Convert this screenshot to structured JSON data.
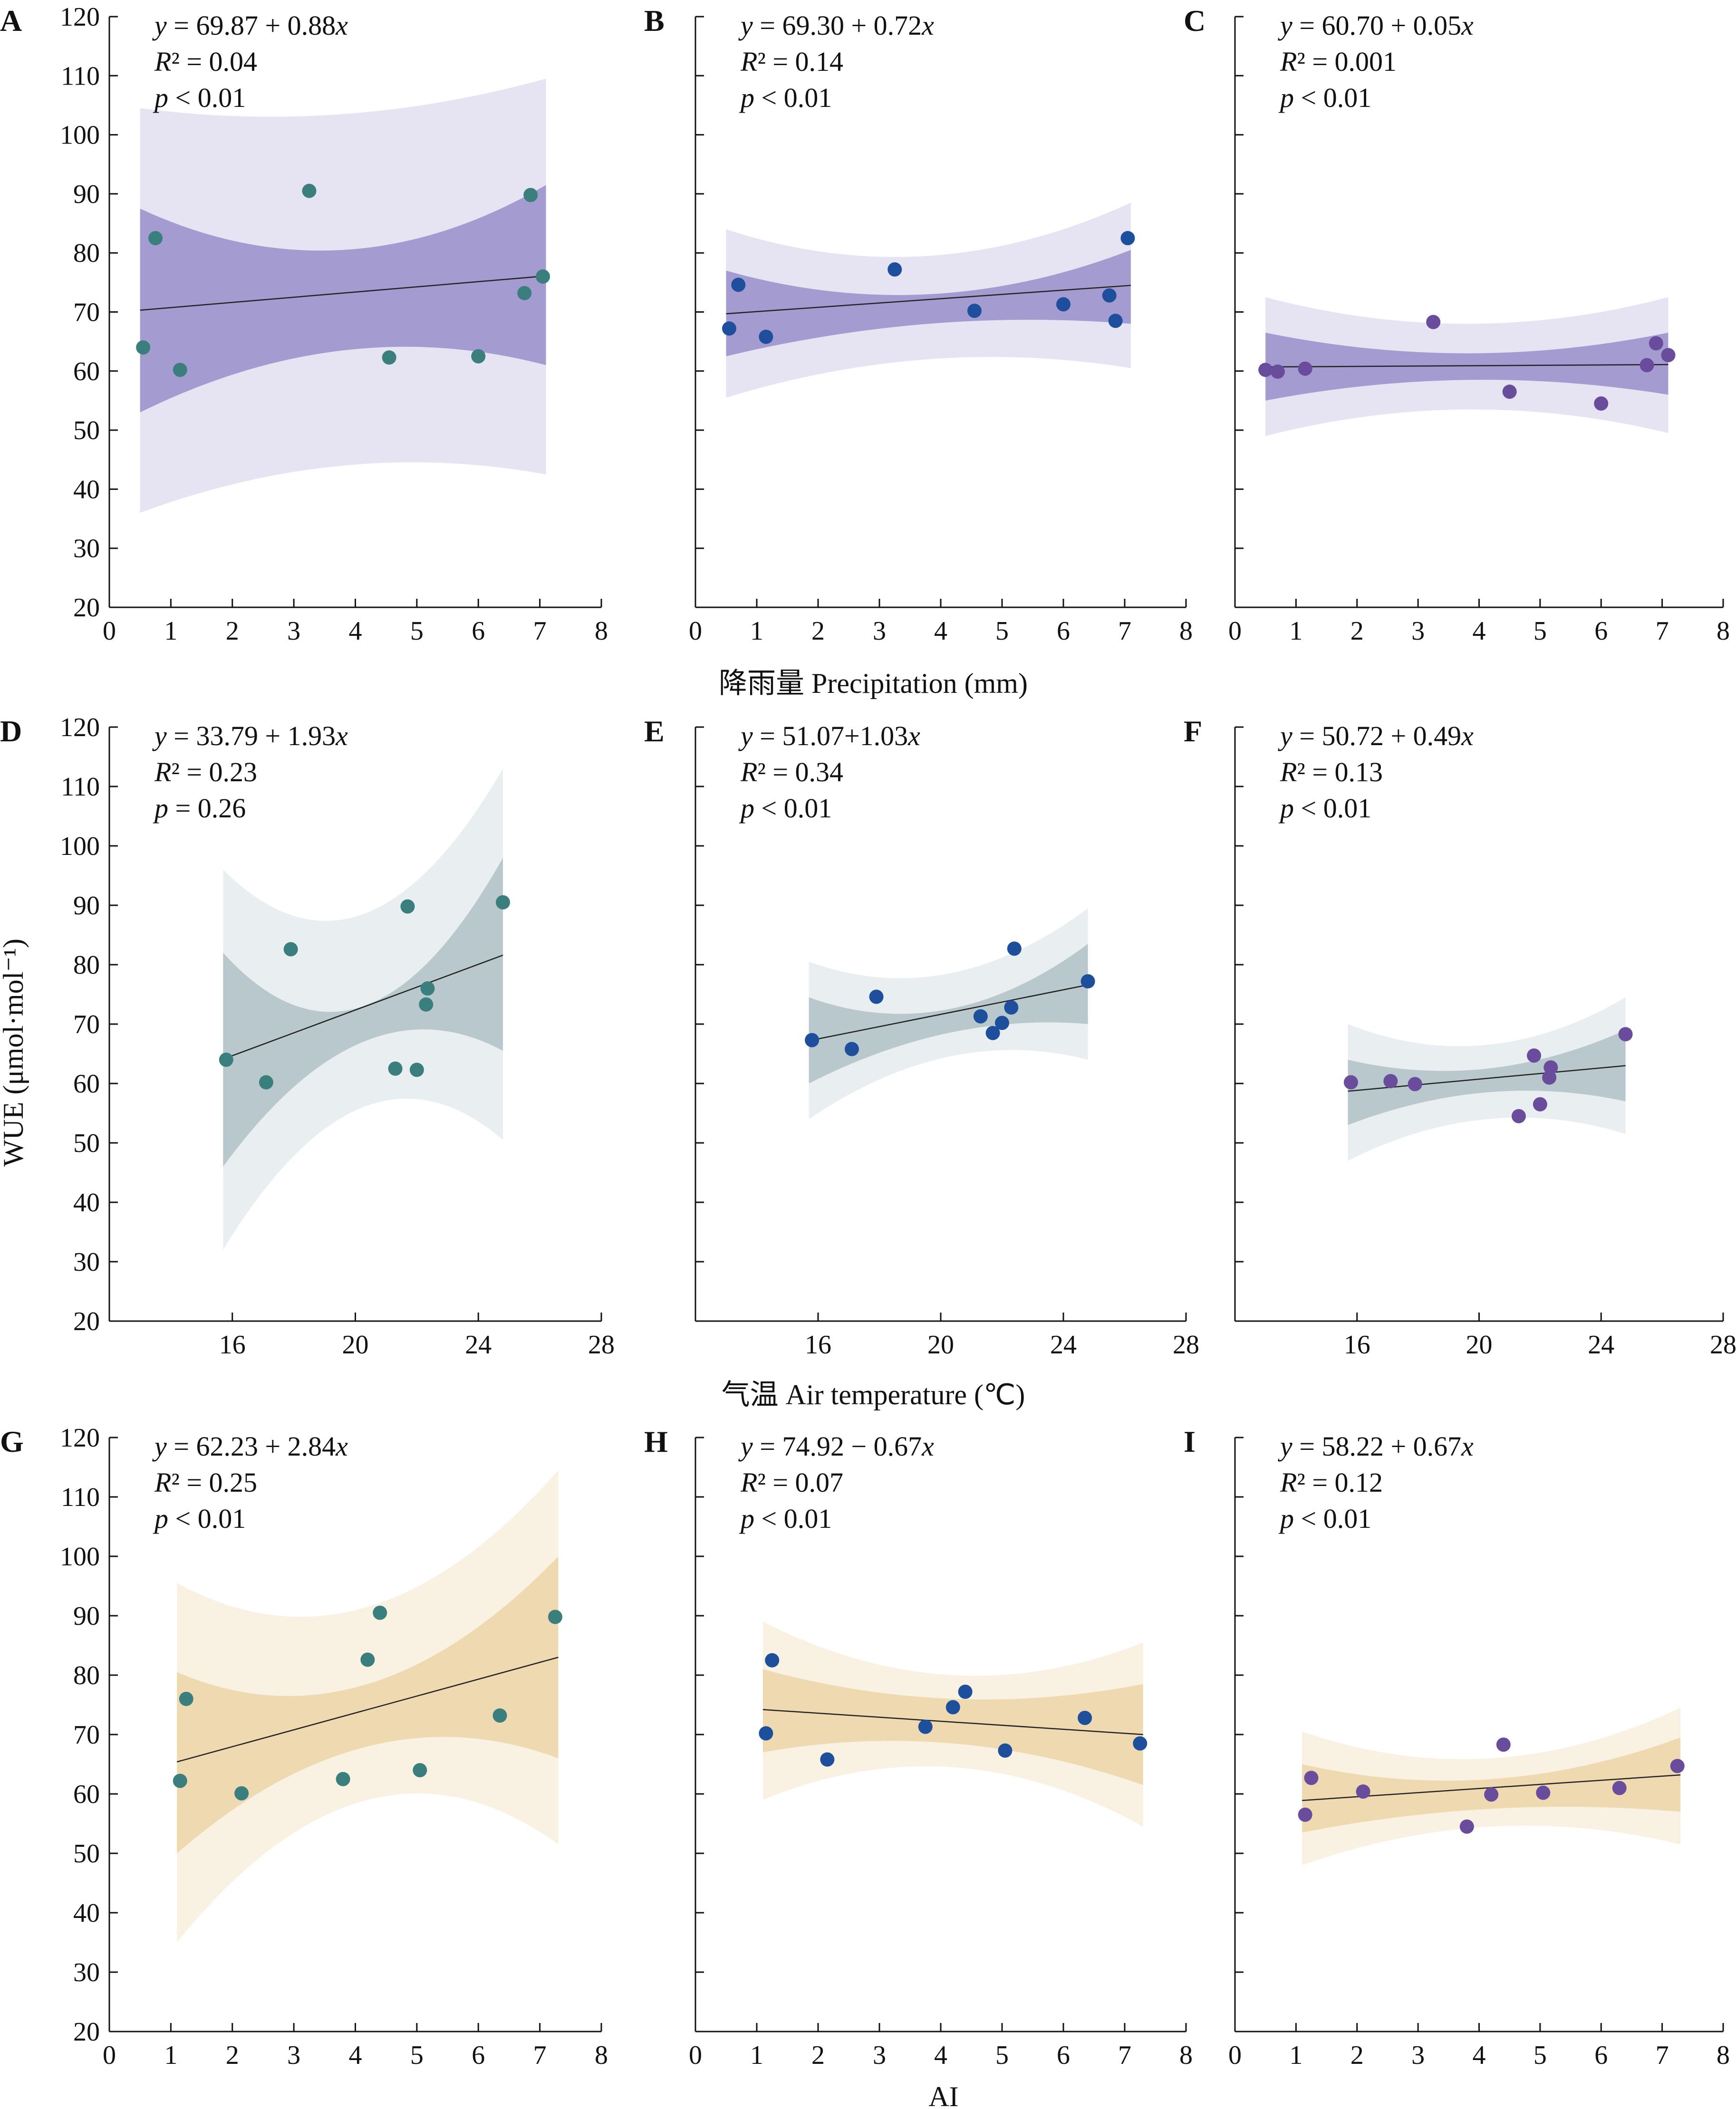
{
  "figure": {
    "ylabel": "WUE (μmol·mol⁻¹)",
    "row_xlabels": [
      "降雨量 Precipitation (mm)",
      "气温 Air temperature (℃)",
      "AI"
    ]
  },
  "colors": {
    "point_col_1": "#3a7f7d",
    "point_col_2": "#1e4f9c",
    "point_col_3": "#6a4c9c",
    "band_row_1_outer": "#e6e3f3",
    "band_row_1_inner": "#a49bd0",
    "band_row_2_outer": "#e9eef0",
    "band_row_2_inner": "#b9c8cc",
    "band_row_3_outer": "#f9f1e2",
    "band_row_3_inner": "#efd9b0",
    "fit_line": "#222222",
    "axis": "#111111"
  },
  "chart_data": [
    {
      "panel": "A",
      "type": "scatter",
      "row": 0,
      "col": 0,
      "equation": "y = 69.87 + 0.88x",
      "r2": "R² = 0.04",
      "p": "p < 0.01",
      "xlim": [
        0,
        8
      ],
      "ylim": [
        20,
        120
      ],
      "xticks": [
        0,
        1,
        2,
        3,
        4,
        5,
        6,
        7,
        8
      ],
      "yticks": [
        20,
        30,
        40,
        50,
        60,
        70,
        80,
        90,
        100,
        110,
        120
      ],
      "points": [
        [
          0.55,
          64
        ],
        [
          0.75,
          82.5
        ],
        [
          1.15,
          60.2
        ],
        [
          3.25,
          90.5
        ],
        [
          4.55,
          62.3
        ],
        [
          6.0,
          62.5
        ],
        [
          6.75,
          73.2
        ],
        [
          6.85,
          89.8
        ],
        [
          7.05,
          76
        ]
      ],
      "fit": [
        [
          0.5,
          70.3
        ],
        [
          7.1,
          76.1
        ]
      ],
      "band_x": [
        0.5,
        7.1
      ],
      "outer_upper": [
        104.5,
        103.5,
        109.5
      ],
      "outer_lower": [
        36.0,
        44.0,
        42.5
      ],
      "inner_upper": [
        87.5,
        80.5,
        91.5
      ],
      "inner_lower": [
        53.0,
        63.5,
        61.0
      ]
    },
    {
      "panel": "B",
      "type": "scatter",
      "row": 0,
      "col": 1,
      "equation": "y = 69.30 + 0.72x",
      "r2": "R² = 0.14",
      "p": "p < 0.01",
      "xlim": [
        0,
        8
      ],
      "ylim": [
        20,
        120
      ],
      "xticks": [
        0,
        1,
        2,
        3,
        4,
        5,
        6,
        7,
        8
      ],
      "yticks": [
        20,
        30,
        40,
        50,
        60,
        70,
        80,
        90,
        100,
        110,
        120
      ],
      "points": [
        [
          0.55,
          67.2
        ],
        [
          0.7,
          74.6
        ],
        [
          1.15,
          65.8
        ],
        [
          3.25,
          77.2
        ],
        [
          4.55,
          70.2
        ],
        [
          6.0,
          71.3
        ],
        [
          6.75,
          72.8
        ],
        [
          6.85,
          68.5
        ],
        [
          7.05,
          82.5
        ]
      ],
      "fit": [
        [
          0.5,
          69.7
        ],
        [
          7.1,
          74.5
        ]
      ],
      "band_x": [
        0.5,
        7.1
      ],
      "outer_upper": [
        84.0,
        79.5,
        88.5
      ],
      "outer_lower": [
        55.5,
        62.0,
        60.5
      ],
      "inner_upper": [
        77.0,
        73.0,
        80.5
      ],
      "inner_lower": [
        62.5,
        68.0,
        68.0
      ]
    },
    {
      "panel": "C",
      "type": "scatter",
      "row": 0,
      "col": 2,
      "equation": "y = 60.70 + 0.05x",
      "r2": "R² = 0.001",
      "p": "p < 0.01",
      "xlim": [
        0,
        8
      ],
      "ylim": [
        20,
        120
      ],
      "xticks": [
        0,
        1,
        2,
        3,
        4,
        5,
        6,
        7,
        8
      ],
      "yticks": [
        20,
        30,
        40,
        50,
        60,
        70,
        80,
        90,
        100,
        110,
        120
      ],
      "points": [
        [
          0.5,
          60.2
        ],
        [
          0.7,
          59.9
        ],
        [
          1.15,
          60.4
        ],
        [
          3.25,
          68.3
        ],
        [
          4.5,
          56.5
        ],
        [
          6.0,
          54.5
        ],
        [
          6.75,
          61.0
        ],
        [
          6.9,
          64.7
        ],
        [
          7.1,
          62.7
        ]
      ],
      "fit": [
        [
          0.5,
          60.7
        ],
        [
          7.1,
          61.1
        ]
      ],
      "band_x": [
        0.5,
        7.1
      ],
      "outer_upper": [
        72.5,
        68.0,
        72.5
      ],
      "outer_lower": [
        49.0,
        53.5,
        49.5
      ],
      "inner_upper": [
        66.5,
        63.0,
        66.5
      ],
      "inner_lower": [
        55.0,
        58.5,
        56.0
      ]
    },
    {
      "panel": "D",
      "type": "scatter",
      "row": 1,
      "col": 0,
      "equation": "y = 33.79 + 1.93x",
      "r2": "R² = 0.23",
      "p": "p = 0.26",
      "xlim": [
        12,
        28
      ],
      "ylim": [
        20,
        120
      ],
      "xticks": [
        16,
        20,
        24,
        28
      ],
      "yticks": [
        20,
        30,
        40,
        50,
        60,
        70,
        80,
        90,
        100,
        110,
        120
      ],
      "points": [
        [
          15.8,
          64
        ],
        [
          17.1,
          60.2
        ],
        [
          17.9,
          82.6
        ],
        [
          21.3,
          62.5
        ],
        [
          21.7,
          89.8
        ],
        [
          22.0,
          62.3
        ],
        [
          22.3,
          73.3
        ],
        [
          22.35,
          76
        ],
        [
          24.8,
          90.5
        ]
      ],
      "fit": [
        [
          15.7,
          64.1
        ],
        [
          24.8,
          81.6
        ]
      ],
      "band_x": [
        15.7,
        24.8
      ],
      "outer_upper": [
        96.0,
        88.5,
        113.0
      ],
      "outer_lower": [
        32.0,
        56.0,
        50.5
      ],
      "inner_upper": [
        82.0,
        73.0,
        98.0
      ],
      "inner_lower": [
        46.0,
        67.0,
        65.5
      ]
    },
    {
      "panel": "E",
      "type": "scatter",
      "row": 1,
      "col": 1,
      "equation": "y = 51.07+1.03x",
      "r2": "R² = 0.34",
      "p": "p < 0.01",
      "xlim": [
        12,
        28
      ],
      "ylim": [
        20,
        120
      ],
      "xticks": [
        16,
        20,
        24,
        28
      ],
      "yticks": [
        20,
        30,
        40,
        50,
        60,
        70,
        80,
        90,
        100,
        110,
        120
      ],
      "points": [
        [
          15.8,
          67.3
        ],
        [
          17.1,
          65.8
        ],
        [
          17.9,
          74.6
        ],
        [
          21.3,
          71.3
        ],
        [
          21.7,
          68.5
        ],
        [
          22.0,
          70.2
        ],
        [
          22.3,
          72.8
        ],
        [
          22.4,
          82.7
        ],
        [
          24.8,
          77.2
        ]
      ],
      "fit": [
        [
          15.7,
          67.2
        ],
        [
          24.8,
          76.6
        ]
      ],
      "band_x": [
        15.7,
        24.8
      ],
      "outer_upper": [
        80.5,
        78.5,
        89.5
      ],
      "outer_lower": [
        54.0,
        64.5,
        64.0
      ],
      "inner_upper": [
        74.5,
        72.5,
        83.5
      ],
      "inner_lower": [
        60.0,
        68.5,
        70.0
      ]
    },
    {
      "panel": "F",
      "type": "scatter",
      "row": 1,
      "col": 2,
      "equation": "y = 50.72 + 0.49x",
      "r2": "R² = 0.13",
      "p": "p < 0.01",
      "xlim": [
        12,
        28
      ],
      "ylim": [
        20,
        120
      ],
      "xticks": [
        16,
        20,
        24,
        28
      ],
      "yticks": [
        20,
        30,
        40,
        50,
        60,
        70,
        80,
        90,
        100,
        110,
        120
      ],
      "points": [
        [
          15.8,
          60.2
        ],
        [
          17.1,
          60.4
        ],
        [
          17.9,
          59.9
        ],
        [
          21.3,
          54.5
        ],
        [
          21.8,
          64.7
        ],
        [
          22.0,
          56.5
        ],
        [
          22.3,
          61.0
        ],
        [
          22.35,
          62.7
        ],
        [
          24.8,
          68.3
        ]
      ],
      "fit": [
        [
          15.7,
          58.7
        ],
        [
          24.8,
          63.0
        ]
      ],
      "band_x": [
        15.7,
        24.8
      ],
      "outer_upper": [
        70.0,
        66.5,
        74.5
      ],
      "outer_lower": [
        47.0,
        54.0,
        51.5
      ],
      "inner_upper": [
        64.0,
        62.5,
        69.0
      ],
      "inner_lower": [
        53.0,
        58.5,
        57.0
      ]
    },
    {
      "panel": "G",
      "type": "scatter",
      "row": 2,
      "col": 0,
      "equation": "y = 62.23 + 2.84x",
      "r2": "R² = 0.25",
      "p": "p < 0.01",
      "xlim": [
        0,
        8
      ],
      "ylim": [
        20,
        120
      ],
      "xticks": [
        0,
        1,
        2,
        3,
        4,
        5,
        6,
        7,
        8
      ],
      "yticks": [
        20,
        30,
        40,
        50,
        60,
        70,
        80,
        90,
        100,
        110,
        120
      ],
      "points": [
        [
          1.15,
          62.2
        ],
        [
          1.25,
          76
        ],
        [
          2.15,
          60.1
        ],
        [
          3.8,
          62.5
        ],
        [
          4.2,
          82.6
        ],
        [
          4.4,
          90.5
        ],
        [
          5.05,
          64
        ],
        [
          6.35,
          73.2
        ],
        [
          7.25,
          89.8
        ]
      ],
      "fit": [
        [
          1.1,
          65.4
        ],
        [
          7.3,
          83.0
        ]
      ],
      "band_x": [
        1.1,
        7.3
      ],
      "outer_upper": [
        95.5,
        91.5,
        114.5
      ],
      "outer_lower": [
        35.0,
        59.0,
        51.5
      ],
      "inner_upper": [
        80.5,
        78.5,
        100.0
      ],
      "inner_lower": [
        50.0,
        68.0,
        66.0
      ]
    },
    {
      "panel": "H",
      "type": "scatter",
      "row": 2,
      "col": 1,
      "equation": "y = 74.92 − 0.67x",
      "r2": "R² = 0.07",
      "p": "p < 0.01",
      "xlim": [
        0,
        8
      ],
      "ylim": [
        20,
        120
      ],
      "xticks": [
        0,
        1,
        2,
        3,
        4,
        5,
        6,
        7,
        8
      ],
      "yticks": [
        20,
        30,
        40,
        50,
        60,
        70,
        80,
        90,
        100,
        110,
        120
      ],
      "points": [
        [
          1.15,
          70.2
        ],
        [
          1.25,
          82.5
        ],
        [
          2.15,
          65.8
        ],
        [
          3.75,
          71.3
        ],
        [
          4.2,
          74.6
        ],
        [
          4.4,
          77.2
        ],
        [
          5.05,
          67.3
        ],
        [
          6.35,
          72.8
        ],
        [
          7.25,
          68.5
        ]
      ],
      "fit": [
        [
          1.1,
          74.2
        ],
        [
          7.3,
          70.0
        ]
      ],
      "band_x": [
        1.1,
        7.3
      ],
      "outer_upper": [
        89.0,
        80.0,
        85.5
      ],
      "outer_lower": [
        59.0,
        64.5,
        54.5
      ],
      "inner_upper": [
        81.0,
        76.0,
        78.5
      ],
      "inner_lower": [
        67.0,
        68.5,
        61.5
      ]
    },
    {
      "panel": "I",
      "type": "scatter",
      "row": 2,
      "col": 2,
      "equation": "y = 58.22 + 0.67x",
      "r2": "R² = 0.12",
      "p": "p < 0.01",
      "xlim": [
        0,
        8
      ],
      "ylim": [
        20,
        120
      ],
      "xticks": [
        0,
        1,
        2,
        3,
        4,
        5,
        6,
        7,
        8
      ],
      "yticks": [
        20,
        30,
        40,
        50,
        60,
        70,
        80,
        90,
        100,
        110,
        120
      ],
      "points": [
        [
          1.15,
          56.5
        ],
        [
          1.25,
          62.7
        ],
        [
          2.1,
          60.4
        ],
        [
          3.8,
          54.5
        ],
        [
          4.2,
          59.9
        ],
        [
          4.4,
          68.3
        ],
        [
          5.05,
          60.2
        ],
        [
          6.3,
          61.0
        ],
        [
          7.25,
          64.7
        ]
      ],
      "fit": [
        [
          1.1,
          58.9
        ],
        [
          7.3,
          63.2
        ]
      ],
      "band_x": [
        1.1,
        7.3
      ],
      "outer_upper": [
        70.5,
        66.0,
        74.5
      ],
      "outer_lower": [
        48.0,
        54.5,
        51.5
      ],
      "inner_upper": [
        65.0,
        62.5,
        69.5
      ],
      "inner_lower": [
        53.5,
        57.5,
        57.0
      ]
    }
  ]
}
